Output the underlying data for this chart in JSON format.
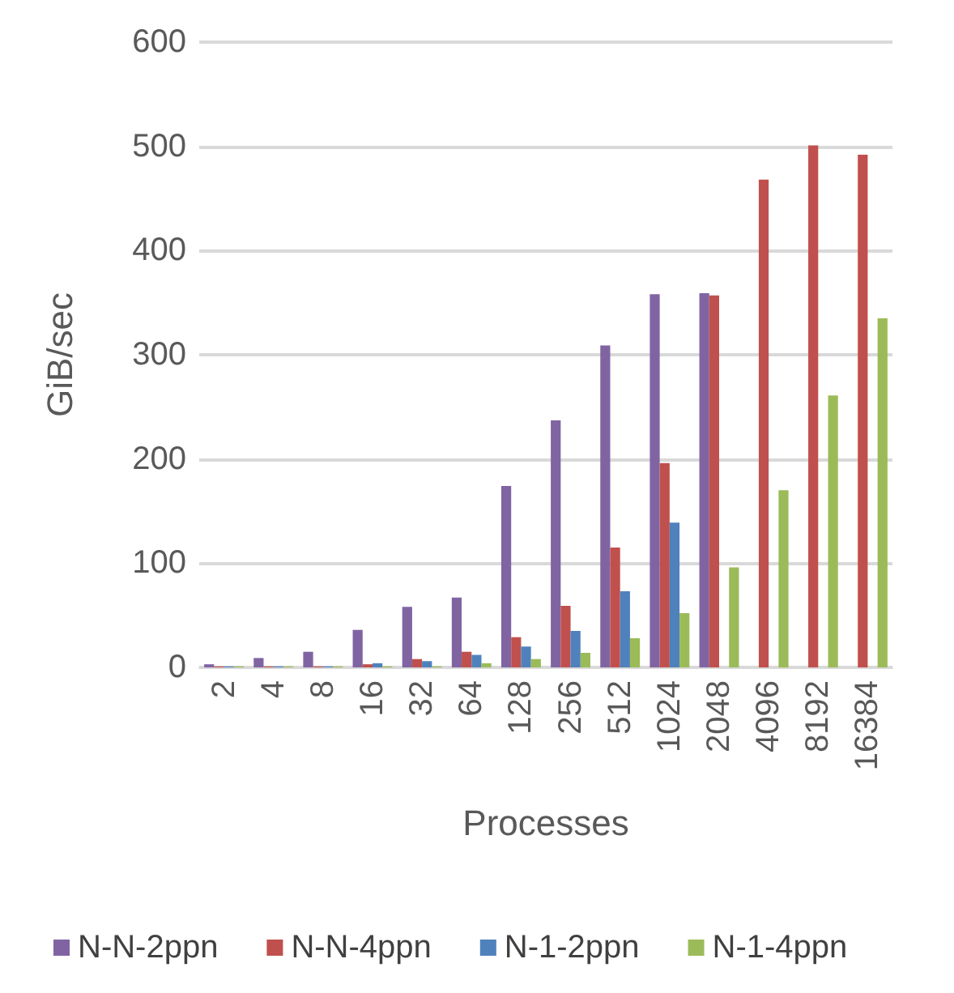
{
  "chart_data": {
    "type": "bar",
    "xlabel": "Processes",
    "ylabel": "GiB/sec",
    "categories": [
      "2",
      "4",
      "8",
      "16",
      "32",
      "64",
      "128",
      "256",
      "512",
      "1024",
      "2048",
      "4096",
      "8192",
      "16384"
    ],
    "series": [
      {
        "name": "N-N-2ppn",
        "color": "#8064a2",
        "values": [
          3,
          9,
          15,
          36,
          58,
          67,
          174,
          237,
          309,
          358,
          359,
          null,
          null,
          null
        ]
      },
      {
        "name": "N-N-4ppn",
        "color": "#c0504d",
        "values": [
          1,
          1,
          1,
          3,
          8,
          15,
          29,
          59,
          115,
          196,
          357,
          468,
          501,
          492
        ]
      },
      {
        "name": "N-1-2ppn",
        "color": "#4f81bd",
        "values": [
          1,
          1,
          1,
          4,
          6,
          12,
          20,
          35,
          73,
          139,
          null,
          null,
          null,
          null
        ]
      },
      {
        "name": "N-1-4ppn",
        "color": "#9bbb59",
        "values": [
          1,
          1,
          1,
          1,
          1,
          4,
          8,
          14,
          28,
          52,
          96,
          170,
          261,
          335
        ]
      }
    ],
    "ylim": [
      0,
      600
    ],
    "yticks": [
      0,
      100,
      200,
      300,
      400,
      500,
      600
    ],
    "grid": "y",
    "legend": "bottom"
  }
}
